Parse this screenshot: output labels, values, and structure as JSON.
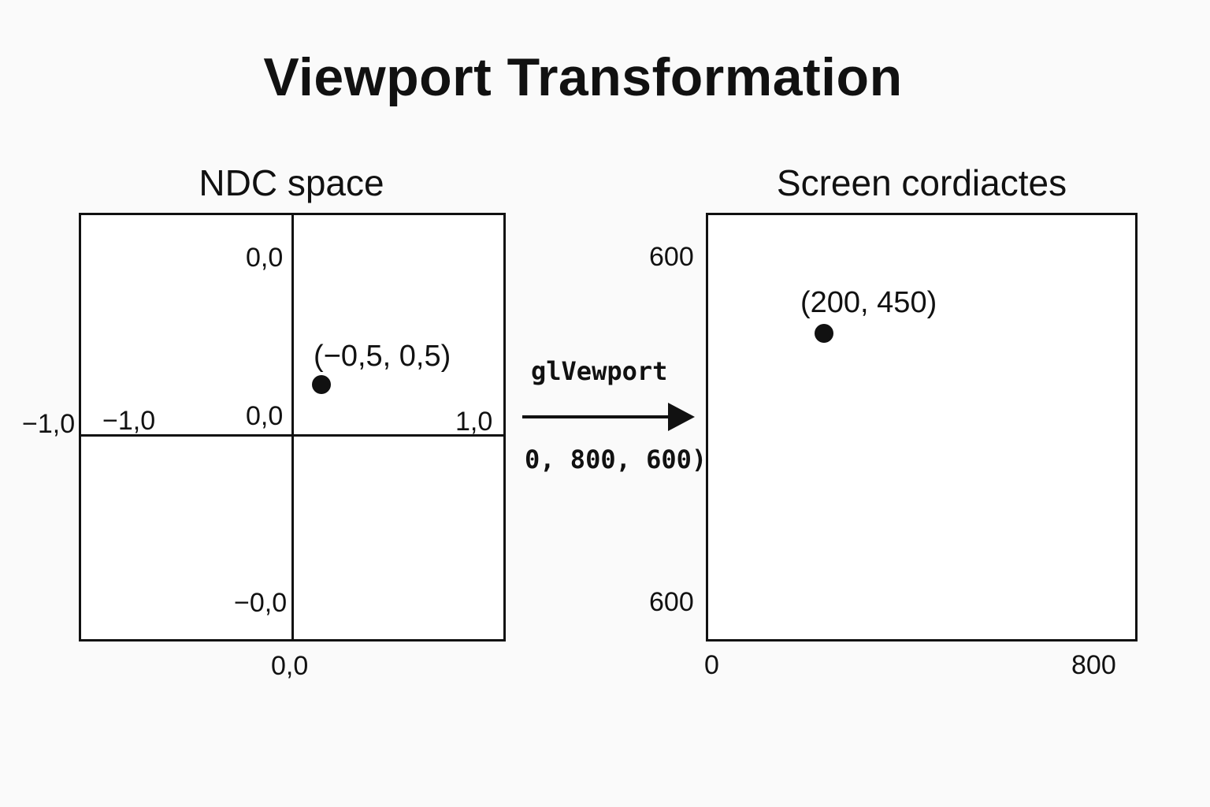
{
  "title": "Viewport Transformation",
  "ndc": {
    "heading": "NDC space",
    "labels": {
      "top_center": "0,0",
      "origin": "0,0",
      "outside_left": "−1,0",
      "inside_left": "−1,0",
      "right": "1,0",
      "bottom_inside": "−0,0",
      "bottom_below": "0,0"
    },
    "point": {
      "label": "(−0,5, 0,5)"
    }
  },
  "transform": {
    "function_name": "glVewport",
    "args": "0, 800, 600)"
  },
  "screen": {
    "heading": "Screen cordiactes",
    "labels": {
      "left_top": "600",
      "left_bottom": "600",
      "bottom_left": "0",
      "bottom_right": "800"
    },
    "point": {
      "label": "(200, 450)"
    }
  }
}
